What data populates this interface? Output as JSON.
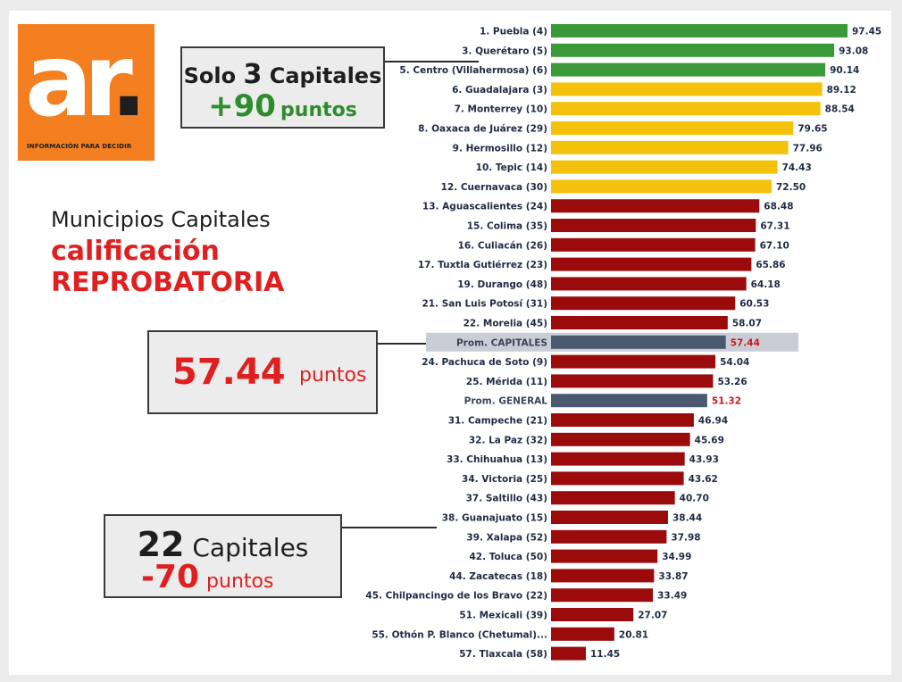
{
  "logo": {
    "letters": "ar",
    "dot": ".",
    "tagline": "INFORMACIÓN PARA DECIDIR"
  },
  "title": {
    "line1": "Municipios Capitales",
    "line2": "calificación",
    "line3": "REPROBATORIA"
  },
  "callouts": {
    "top": {
      "pre": "Solo ",
      "number": "3",
      "post": " Capitales",
      "points": "+90",
      "unit": "puntos"
    },
    "middle": {
      "points": "57.44",
      "unit": "puntos"
    },
    "bottom": {
      "number": "22",
      "word": " Capitales",
      "points": "-70",
      "unit": "puntos"
    }
  },
  "colors": {
    "green": "#3a9a3a",
    "yellow": "#f4c20d",
    "red": "#9b0b0b",
    "average": "#4a5870",
    "highlight": "#c9ced6",
    "value_red": "#d01818"
  },
  "chart_data": {
    "type": "bar",
    "orientation": "horizontal",
    "xlim": [
      0,
      100
    ],
    "categories": [
      "1. Puebla (4)",
      "3. Querétaro (5)",
      "5. Centro (Villahermosa) (6)",
      "6. Guadalajara (3)",
      "7. Monterrey (10)",
      "8. Oaxaca de Juárez (29)",
      "9. Hermosillo (12)",
      "10. Tepic (14)",
      "12. Cuernavaca (30)",
      "13. Aguascalientes (24)",
      "15. Colima (35)",
      "16. Culiacán (26)",
      "17. Tuxtla Gutiérrez (23)",
      "19. Durango (48)",
      "21. San Luis Potosí (31)",
      "22. Morelia (45)",
      "Prom. CAPITALES",
      "24. Pachuca de Soto (9)",
      "25. Mérida (11)",
      "Prom. GENERAL",
      "31. Campeche (21)",
      "32. La Paz (32)",
      "33. Chihuahua (13)",
      "34. Victoria (25)",
      "37. Saltillo (43)",
      "38. Guanajuato (15)",
      "39. Xalapa (52)",
      "42. Toluca (50)",
      "44. Zacatecas (18)",
      "45. Chilpancingo de los Bravo (22)",
      "51. Mexicali (39)",
      "55. Othón P. Blanco (Chetumal)...",
      "57. Tlaxcala (58)"
    ],
    "values": [
      97.45,
      93.08,
      90.14,
      89.12,
      88.54,
      79.65,
      77.96,
      74.43,
      72.5,
      68.48,
      67.31,
      67.1,
      65.86,
      64.18,
      60.53,
      58.07,
      57.44,
      54.04,
      53.26,
      51.32,
      46.94,
      45.69,
      43.93,
      43.62,
      40.7,
      38.44,
      37.98,
      34.99,
      33.87,
      33.49,
      27.07,
      20.81,
      11.45
    ],
    "value_labels": [
      "97.45",
      "93.08",
      "90.14",
      "89.12",
      "88.54",
      "79.65",
      "77.96",
      "74.43",
      "72.50",
      "68.48",
      "67.31",
      "67.10",
      "65.86",
      "64.18",
      "60.53",
      "58.07",
      "57.44",
      "54.04",
      "53.26",
      "51.32",
      "46.94",
      "45.69",
      "43.93",
      "43.62",
      "40.70",
      "38.44",
      "37.98",
      "34.99",
      "33.87",
      "33.49",
      "27.07",
      "20.81",
      "11.45"
    ],
    "color_groups": [
      "green",
      "green",
      "green",
      "yellow",
      "yellow",
      "yellow",
      "yellow",
      "yellow",
      "yellow",
      "red",
      "red",
      "red",
      "red",
      "red",
      "red",
      "red",
      "average",
      "red",
      "red",
      "average",
      "red",
      "red",
      "red",
      "red",
      "red",
      "red",
      "red",
      "red",
      "red",
      "red",
      "red",
      "red",
      "red"
    ],
    "highlighted": [
      16
    ]
  }
}
